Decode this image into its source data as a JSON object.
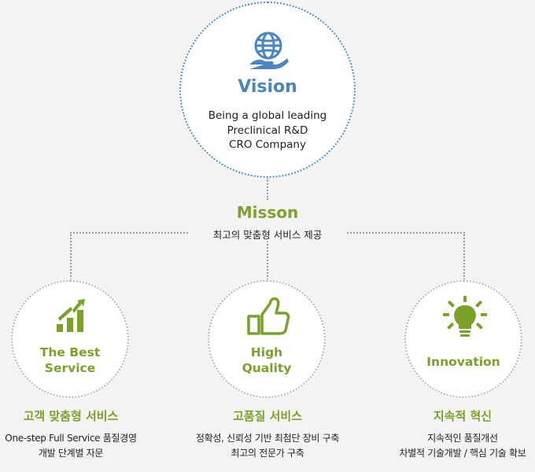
{
  "vision": {
    "title": "Vision",
    "lines": [
      "Being a global leading",
      "Preclinical R&D",
      "CRO Company"
    ]
  },
  "mission": {
    "title": "Misson",
    "subtitle": "최고의 맞춤형 서비스 제공"
  },
  "pillars": [
    {
      "icon": "growth-chart-icon",
      "label_lines": [
        "The Best",
        "Service"
      ],
      "heading": "고객 맞춤형 서비스",
      "desc_lines": [
        "One-step Full Service 품질경영",
        "개발 단계별 자문"
      ]
    },
    {
      "icon": "thumbs-up-icon",
      "label_lines": [
        "High",
        "Quality"
      ],
      "heading": "고품질 서비스",
      "desc_lines": [
        "정확성, 신뢰성 기반 최첨단 장비 구축",
        "최고의 전문가 구축"
      ]
    },
    {
      "icon": "lightbulb-icon",
      "label_lines": [
        "Innovation"
      ],
      "heading": "지속적 혁신",
      "desc_lines": [
        "지속적인 품질개선",
        "차별적 기술개발 / 핵심 기술 확보"
      ]
    }
  ],
  "colors": {
    "vision_blue": "#4a86c0",
    "accent_green": "#7aa22a"
  }
}
